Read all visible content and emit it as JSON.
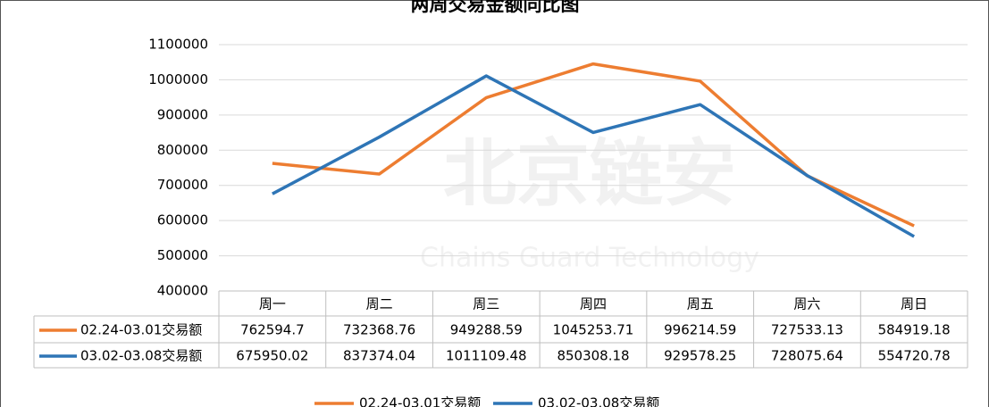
{
  "chart_data": {
    "type": "line",
    "title": "两周交易金额同比图",
    "watermark": [
      "北京链安",
      "Chains Guard Technology"
    ],
    "categories": [
      "周一",
      "周二",
      "周三",
      "周四",
      "周五",
      "周六",
      "周日"
    ],
    "series": [
      {
        "name": "02.24-03.01交易额",
        "color": "#ed7d31",
        "values": [
          762594.7,
          732368.76,
          949288.59,
          1045253.71,
          996214.59,
          727533.13,
          584919.18
        ]
      },
      {
        "name": "03.02-03.08交易额",
        "color": "#2e75b6",
        "values": [
          675950.02,
          837374.04,
          1011109.48,
          850308.18,
          929578.25,
          728075.64,
          554720.78
        ]
      }
    ],
    "ylim": [
      400000,
      1100000
    ],
    "yticks": [
      400000,
      500000,
      600000,
      700000,
      800000,
      900000,
      1000000,
      1100000
    ],
    "grid": true,
    "legend": "bottom"
  }
}
